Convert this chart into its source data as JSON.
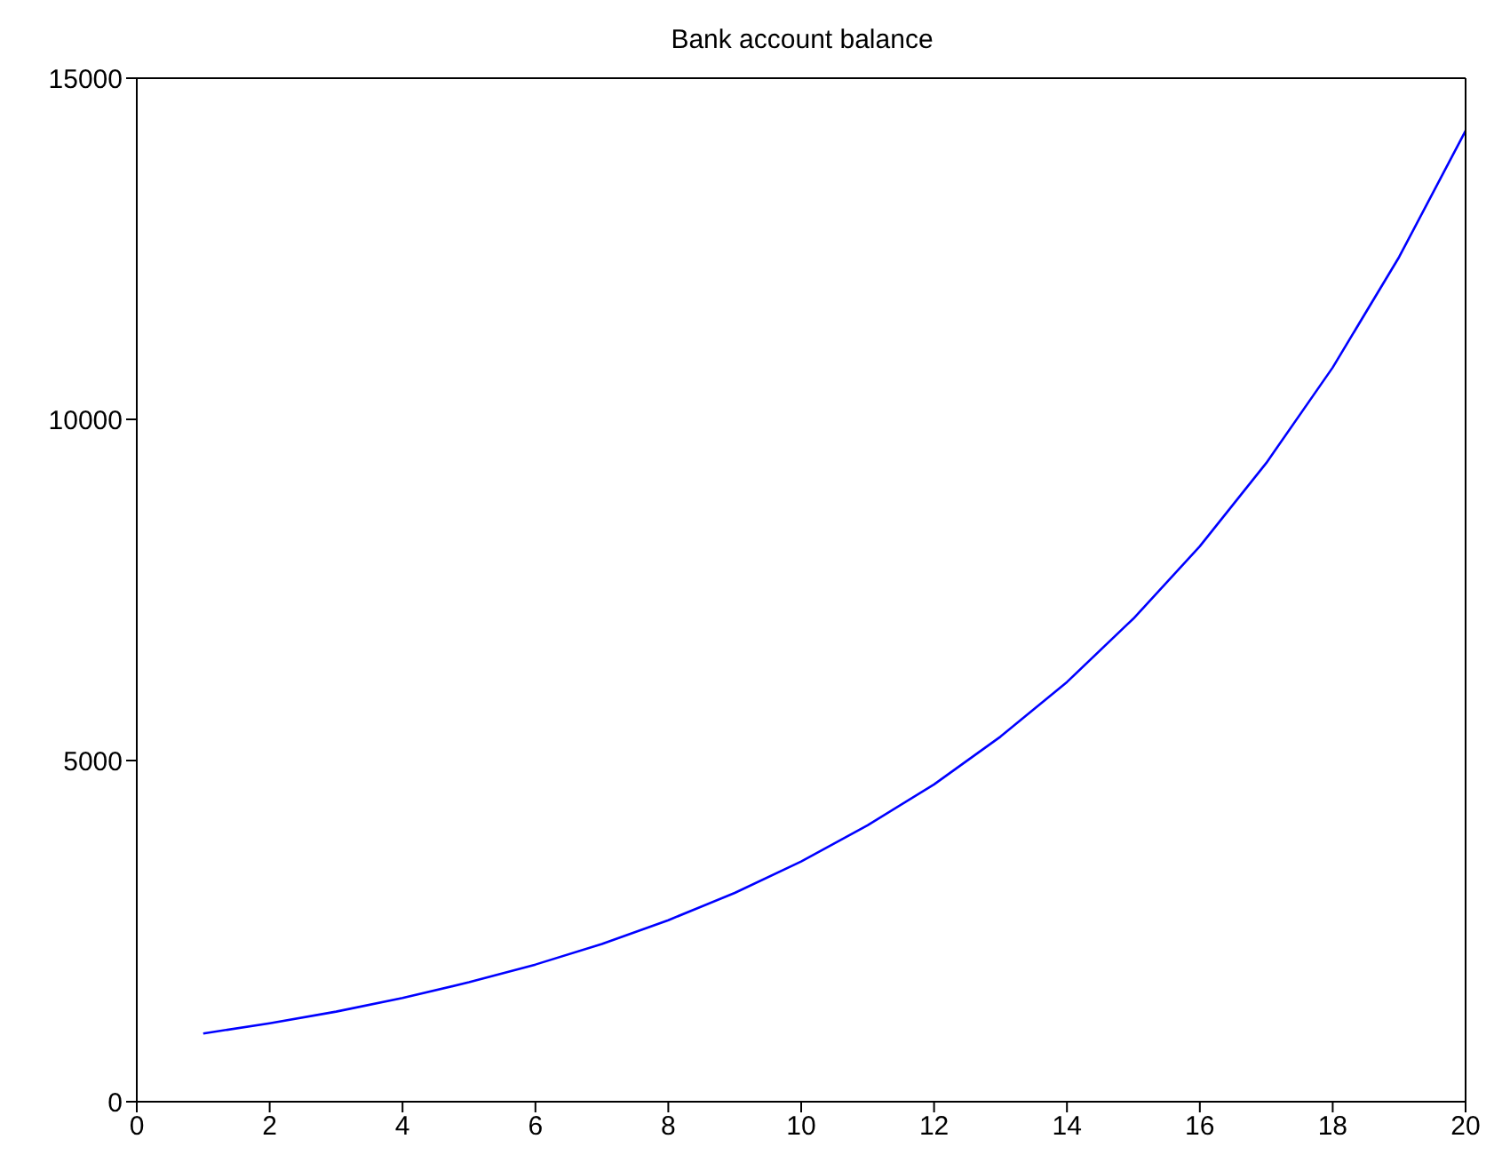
{
  "chart_data": {
    "type": "line",
    "title": "Bank account balance",
    "x": [
      1,
      2,
      3,
      4,
      5,
      6,
      7,
      8,
      9,
      10,
      11,
      12,
      13,
      14,
      15,
      16,
      17,
      18,
      19,
      20
    ],
    "series": [
      {
        "color": "#0000ff",
        "values": [
          1000,
          1150,
          1320,
          1520,
          1750,
          2010,
          2310,
          2660,
          3060,
          3520,
          4050,
          4650,
          5350,
          6150,
          7080,
          8140,
          9360,
          10760,
          12380,
          14230
        ]
      }
    ],
    "xlim": [
      0,
      20
    ],
    "xticks": [
      0,
      2,
      4,
      6,
      8,
      10,
      12,
      14,
      16,
      18,
      20
    ],
    "ylim": [
      0,
      15000
    ],
    "yticks": [
      0,
      5000,
      10000,
      15000
    ],
    "grid": false,
    "legend": false,
    "marker": "none",
    "line_style": "solid"
  }
}
